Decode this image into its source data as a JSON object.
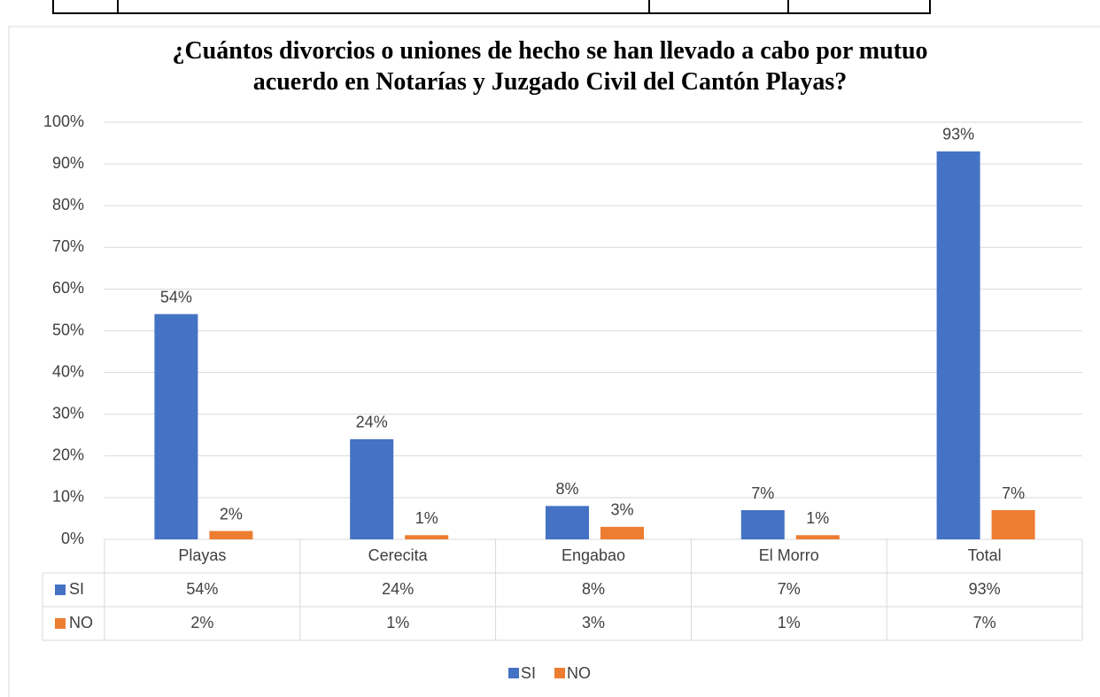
{
  "chart_data": {
    "type": "bar",
    "title": "¿Cuántos divorcios o uniones de hecho se han llevado a cabo por mutuo acuerdo en Notarías y Juzgado Civil del Cantón Playas?",
    "categories": [
      "Playas",
      "Cerecita",
      "Engabao",
      "El Morro",
      "Total"
    ],
    "series": [
      {
        "name": "SI",
        "color": "#4472c4",
        "values": [
          54,
          24,
          8,
          7,
          93
        ],
        "value_labels": [
          "54%",
          "24%",
          "8%",
          "7%",
          "93%"
        ]
      },
      {
        "name": "NO",
        "color": "#ed7d31",
        "values": [
          2,
          1,
          3,
          1,
          7
        ],
        "value_labels": [
          "2%",
          "1%",
          "3%",
          "1%",
          "7%"
        ]
      }
    ],
    "ylim": [
      0,
      100
    ],
    "yticks": [
      {
        "value": 0,
        "label": "0%"
      },
      {
        "value": 10,
        "label": "10%"
      },
      {
        "value": 20,
        "label": "20%"
      },
      {
        "value": 30,
        "label": "30%"
      },
      {
        "value": 40,
        "label": "40%"
      },
      {
        "value": 50,
        "label": "50%"
      },
      {
        "value": 60,
        "label": "60%"
      },
      {
        "value": 70,
        "label": "70%"
      },
      {
        "value": 80,
        "label": "80%"
      },
      {
        "value": 90,
        "label": "90%"
      },
      {
        "value": 100,
        "label": "100%"
      }
    ],
    "grid": true,
    "legend": "bottom"
  }
}
